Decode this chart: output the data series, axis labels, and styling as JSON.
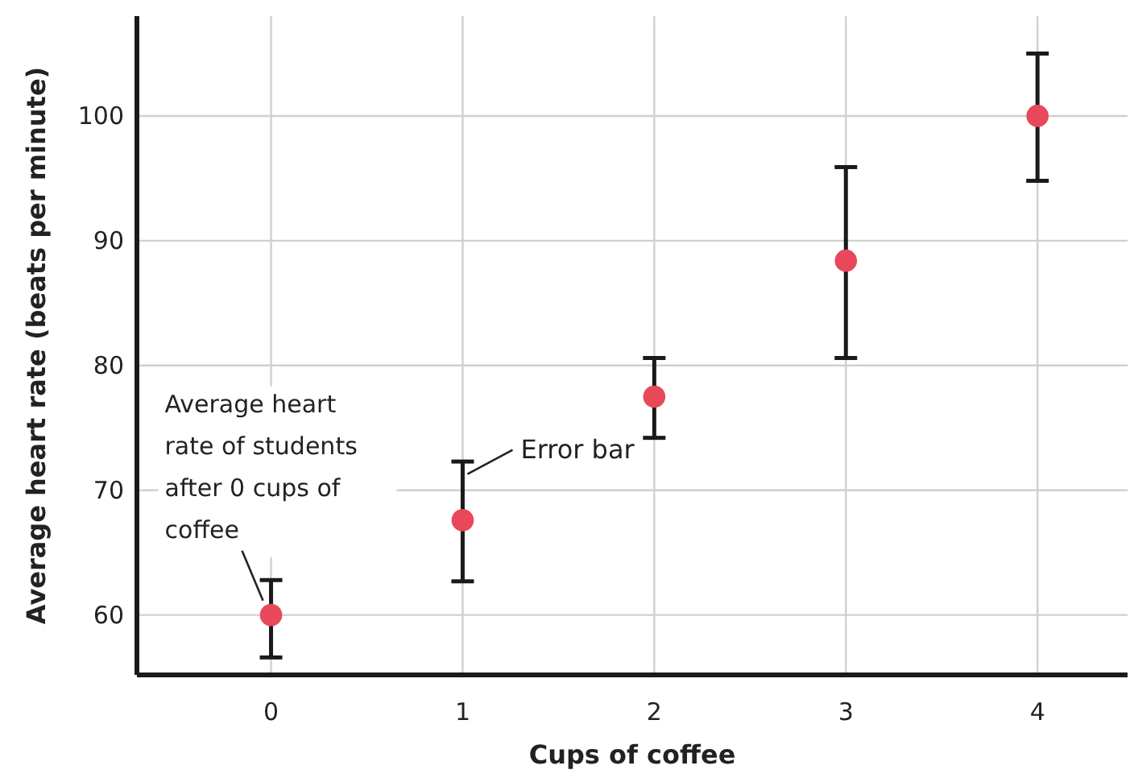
{
  "chart_data": {
    "type": "scatter",
    "xlabel": "Cups of coffee",
    "ylabel": "Average heart rate (beats per minute)",
    "x": [
      0,
      1,
      2,
      3,
      4
    ],
    "values": [
      60,
      67.6,
      77.5,
      88.4,
      100
    ],
    "color": "#e8485a",
    "errors": [
      [
        56.6,
        62.8
      ],
      [
        62.7,
        72.3
      ],
      [
        74.2,
        80.6
      ],
      [
        80.6,
        95.9
      ],
      [
        94.8,
        105
      ]
    ],
    "xlim": [
      -0.7,
      4.47
    ],
    "ylim": [
      55.2,
      108
    ],
    "xticks": [
      0,
      1,
      2,
      3,
      4
    ],
    "yticks": [
      60,
      70,
      80,
      90,
      100
    ],
    "grid": true,
    "marker": "circle",
    "annotations": [
      {
        "text": "Average heart rate of students after 0 cups of coffee",
        "x": 0,
        "y": 60
      },
      {
        "text": "Error bar",
        "x": 1,
        "y": 70
      }
    ]
  }
}
